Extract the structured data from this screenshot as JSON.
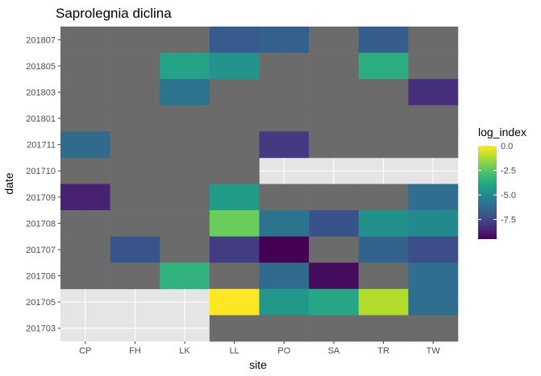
{
  "chart_data": {
    "type": "heatmap",
    "title": "Saprolegnia diclina",
    "xlabel": "site",
    "ylabel": "date",
    "x_categories": [
      "CP",
      "FH",
      "LK",
      "LL",
      "PO",
      "SA",
      "TR",
      "TW"
    ],
    "y_categories": [
      "201703",
      "201705",
      "201706",
      "201707",
      "201708",
      "201709",
      "201710",
      "201711",
      "201801",
      "201803",
      "201805",
      "201807"
    ],
    "legend": {
      "title": "log_index",
      "ticks": [
        0.0,
        -2.5,
        -5.0,
        -7.5
      ],
      "tick_labels": [
        "0.0",
        "-2.5",
        "-5.0",
        "-7.5"
      ],
      "range": [
        -9.5,
        0.0
      ],
      "placement": "right"
    },
    "na_color": "#6b6b6b",
    "panel_background": "#e5e5e5",
    "cells": [
      {
        "site": "CP",
        "date": "201807",
        "value": null
      },
      {
        "site": "FH",
        "date": "201807",
        "value": null
      },
      {
        "site": "LK",
        "date": "201807",
        "value": null
      },
      {
        "site": "LL",
        "date": "201807",
        "value": -6.8
      },
      {
        "site": "PO",
        "date": "201807",
        "value": -6.6
      },
      {
        "site": "SA",
        "date": "201807",
        "value": null
      },
      {
        "site": "TR",
        "date": "201807",
        "value": -6.7
      },
      {
        "site": "TW",
        "date": "201807",
        "value": null
      },
      {
        "site": "CP",
        "date": "201805",
        "value": null
      },
      {
        "site": "FH",
        "date": "201805",
        "value": null
      },
      {
        "site": "LK",
        "date": "201805",
        "value": -4.0
      },
      {
        "site": "LL",
        "date": "201805",
        "value": -4.6
      },
      {
        "site": "PO",
        "date": "201805",
        "value": null
      },
      {
        "site": "SA",
        "date": "201805",
        "value": null
      },
      {
        "site": "TR",
        "date": "201805",
        "value": -3.6
      },
      {
        "site": "TW",
        "date": "201805",
        "value": null
      },
      {
        "site": "CP",
        "date": "201803",
        "value": null
      },
      {
        "site": "FH",
        "date": "201803",
        "value": null
      },
      {
        "site": "LK",
        "date": "201803",
        "value": -5.9
      },
      {
        "site": "LL",
        "date": "201803",
        "value": null
      },
      {
        "site": "PO",
        "date": "201803",
        "value": null
      },
      {
        "site": "SA",
        "date": "201803",
        "value": null
      },
      {
        "site": "TR",
        "date": "201803",
        "value": null
      },
      {
        "site": "TW",
        "date": "201803",
        "value": -8.2
      },
      {
        "site": "CP",
        "date": "201801",
        "value": null
      },
      {
        "site": "FH",
        "date": "201801",
        "value": null
      },
      {
        "site": "LK",
        "date": "201801",
        "value": null
      },
      {
        "site": "LL",
        "date": "201801",
        "value": null
      },
      {
        "site": "PO",
        "date": "201801",
        "value": null
      },
      {
        "site": "SA",
        "date": "201801",
        "value": null
      },
      {
        "site": "TR",
        "date": "201801",
        "value": null
      },
      {
        "site": "TW",
        "date": "201801",
        "value": null
      },
      {
        "site": "CP",
        "date": "201711",
        "value": -6.2
      },
      {
        "site": "FH",
        "date": "201711",
        "value": null
      },
      {
        "site": "LK",
        "date": "201711",
        "value": null
      },
      {
        "site": "LL",
        "date": "201711",
        "value": null
      },
      {
        "site": "PO",
        "date": "201711",
        "value": -7.9
      },
      {
        "site": "SA",
        "date": "201711",
        "value": null
      },
      {
        "site": "TR",
        "date": "201711",
        "value": null
      },
      {
        "site": "TW",
        "date": "201711",
        "value": null
      },
      {
        "site": "CP",
        "date": "201710",
        "value": null
      },
      {
        "site": "FH",
        "date": "201710",
        "value": null
      },
      {
        "site": "LK",
        "date": "201710",
        "value": null
      },
      {
        "site": "LL",
        "date": "201710",
        "value": null
      },
      {
        "site": "CP",
        "date": "201709",
        "value": -8.6
      },
      {
        "site": "FH",
        "date": "201709",
        "value": null
      },
      {
        "site": "LK",
        "date": "201709",
        "value": null
      },
      {
        "site": "LL",
        "date": "201709",
        "value": -4.3
      },
      {
        "site": "PO",
        "date": "201709",
        "value": null
      },
      {
        "site": "SA",
        "date": "201709",
        "value": null
      },
      {
        "site": "TR",
        "date": "201709",
        "value": null
      },
      {
        "site": "TW",
        "date": "201709",
        "value": -6.1
      },
      {
        "site": "CP",
        "date": "201708",
        "value": null
      },
      {
        "site": "FH",
        "date": "201708",
        "value": null
      },
      {
        "site": "LK",
        "date": "201708",
        "value": null
      },
      {
        "site": "LL",
        "date": "201708",
        "value": -2.2
      },
      {
        "site": "PO",
        "date": "201708",
        "value": -5.9
      },
      {
        "site": "SA",
        "date": "201708",
        "value": -7.1
      },
      {
        "site": "TR",
        "date": "201708",
        "value": -4.7
      },
      {
        "site": "TW",
        "date": "201708",
        "value": -5.0
      },
      {
        "site": "CP",
        "date": "201707",
        "value": null
      },
      {
        "site": "FH",
        "date": "201707",
        "value": -7.0
      },
      {
        "site": "LK",
        "date": "201707",
        "value": null
      },
      {
        "site": "LL",
        "date": "201707",
        "value": -7.8
      },
      {
        "site": "PO",
        "date": "201707",
        "value": -9.5
      },
      {
        "site": "SA",
        "date": "201707",
        "value": null
      },
      {
        "site": "TR",
        "date": "201707",
        "value": -6.5
      },
      {
        "site": "TW",
        "date": "201707",
        "value": -7.3
      },
      {
        "site": "CP",
        "date": "201706",
        "value": null
      },
      {
        "site": "FH",
        "date": "201706",
        "value": null
      },
      {
        "site": "LK",
        "date": "201706",
        "value": -3.4
      },
      {
        "site": "LL",
        "date": "201706",
        "value": null
      },
      {
        "site": "PO",
        "date": "201706",
        "value": -6.2
      },
      {
        "site": "SA",
        "date": "201706",
        "value": -9.2
      },
      {
        "site": "TR",
        "date": "201706",
        "value": null
      },
      {
        "site": "TW",
        "date": "201706",
        "value": -6.1
      },
      {
        "site": "LL",
        "date": "201705",
        "value": 0.0
      },
      {
        "site": "PO",
        "date": "201705",
        "value": -4.5
      },
      {
        "site": "SA",
        "date": "201705",
        "value": -3.9
      },
      {
        "site": "TR",
        "date": "201705",
        "value": -1.1
      },
      {
        "site": "TW",
        "date": "201705",
        "value": -6.1
      },
      {
        "site": "LL",
        "date": "201703",
        "value": null
      },
      {
        "site": "PO",
        "date": "201703",
        "value": null
      },
      {
        "site": "SA",
        "date": "201703",
        "value": null
      },
      {
        "site": "TR",
        "date": "201703",
        "value": null
      },
      {
        "site": "TW",
        "date": "201703",
        "value": null
      }
    ]
  }
}
